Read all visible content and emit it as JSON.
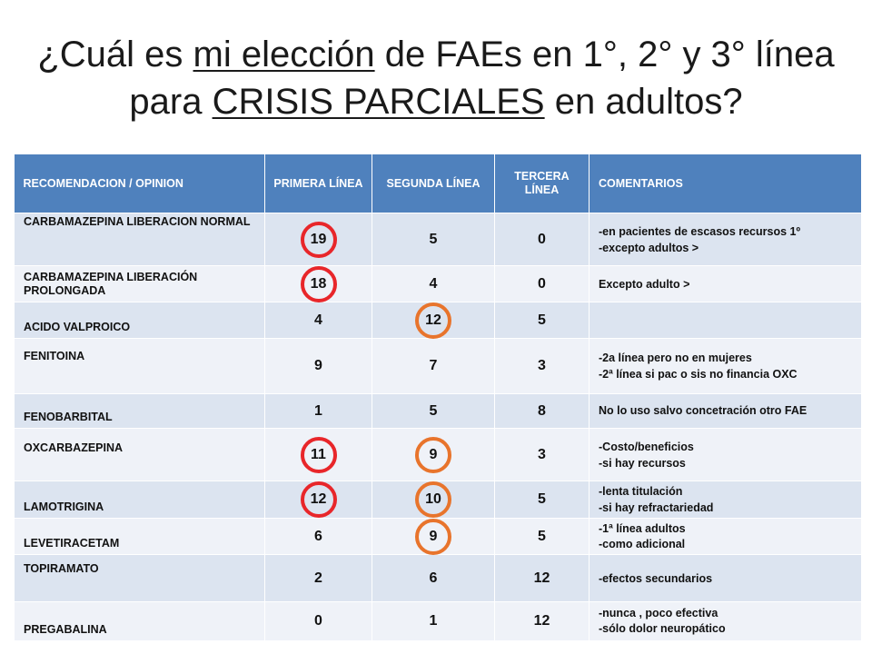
{
  "title": {
    "l1_pre": "¿Cuál es ",
    "l1_u": "mi elección",
    "l1_post": " de FAEs en 1°, 2° y 3° línea",
    "l2_pre": "para ",
    "l2_u": "CRISIS PARCIALES",
    "l2_post": " en adultos?"
  },
  "headers": {
    "drug": "RECOMENDACION / OPINION",
    "first": "PRIMERA LÍNEA",
    "second": "SEGUNDA LÍNEA",
    "third": "TERCERA LÍNEA",
    "comments": "COMENTARIOS"
  },
  "circle_colors": {
    "red": "#e8262a",
    "orange": "#e8742c"
  },
  "rows": [
    {
      "drug": "CARBAMAZEPINA LIBERACION NORMAL",
      "first": "19",
      "second": "5",
      "third": "0",
      "c1": "-en pacientes de escasos recursos 1º",
      "c2": "-excepto adultos >"
    },
    {
      "drug": "CARBAMAZEPINA LIBERACIÓN PROLONGADA",
      "first": "18",
      "second": "4",
      "third": "0",
      "c1": "Excepto adulto >",
      "c2": ""
    },
    {
      "drug": "ACIDO VALPROICO",
      "first": "4",
      "second": "12",
      "third": "5",
      "c1": "",
      "c2": ""
    },
    {
      "drug": "FENITOINA",
      "first": "9",
      "second": "7",
      "third": "3",
      "c1": "-2a línea pero no en mujeres",
      "c2": "-2ª línea si pac o sis no financia OXC"
    },
    {
      "drug": "FENOBARBITAL",
      "first": "1",
      "second": "5",
      "third": "8",
      "c1": "No lo uso salvo concetración otro FAE",
      "c2": ""
    },
    {
      "drug": "OXCARBAZEPINA",
      "first": "11",
      "second": "9",
      "third": "3",
      "c1": "-Costo/beneficios",
      "c2": "-si hay recursos"
    },
    {
      "drug": "LAMOTRIGINA",
      "first": "12",
      "second": "10",
      "third": "5",
      "c1": "-lenta titulación",
      "c2": "-si hay refractariedad"
    },
    {
      "drug": "LEVETIRACETAM",
      "first": "6",
      "second": "9",
      "third": "5",
      "c1": "-1ª línea adultos",
      "c2": "-como adicional"
    },
    {
      "drug": "TOPIRAMATO",
      "first": "2",
      "second": "6",
      "third": "12",
      "c1": "-efectos secundarios",
      "c2": ""
    },
    {
      "drug": "PREGABALINA",
      "first": "0",
      "second": "1",
      "third": "12",
      "c1": "-nunca , poco efectiva",
      "c2": "-sólo dolor neuropático"
    }
  ]
}
